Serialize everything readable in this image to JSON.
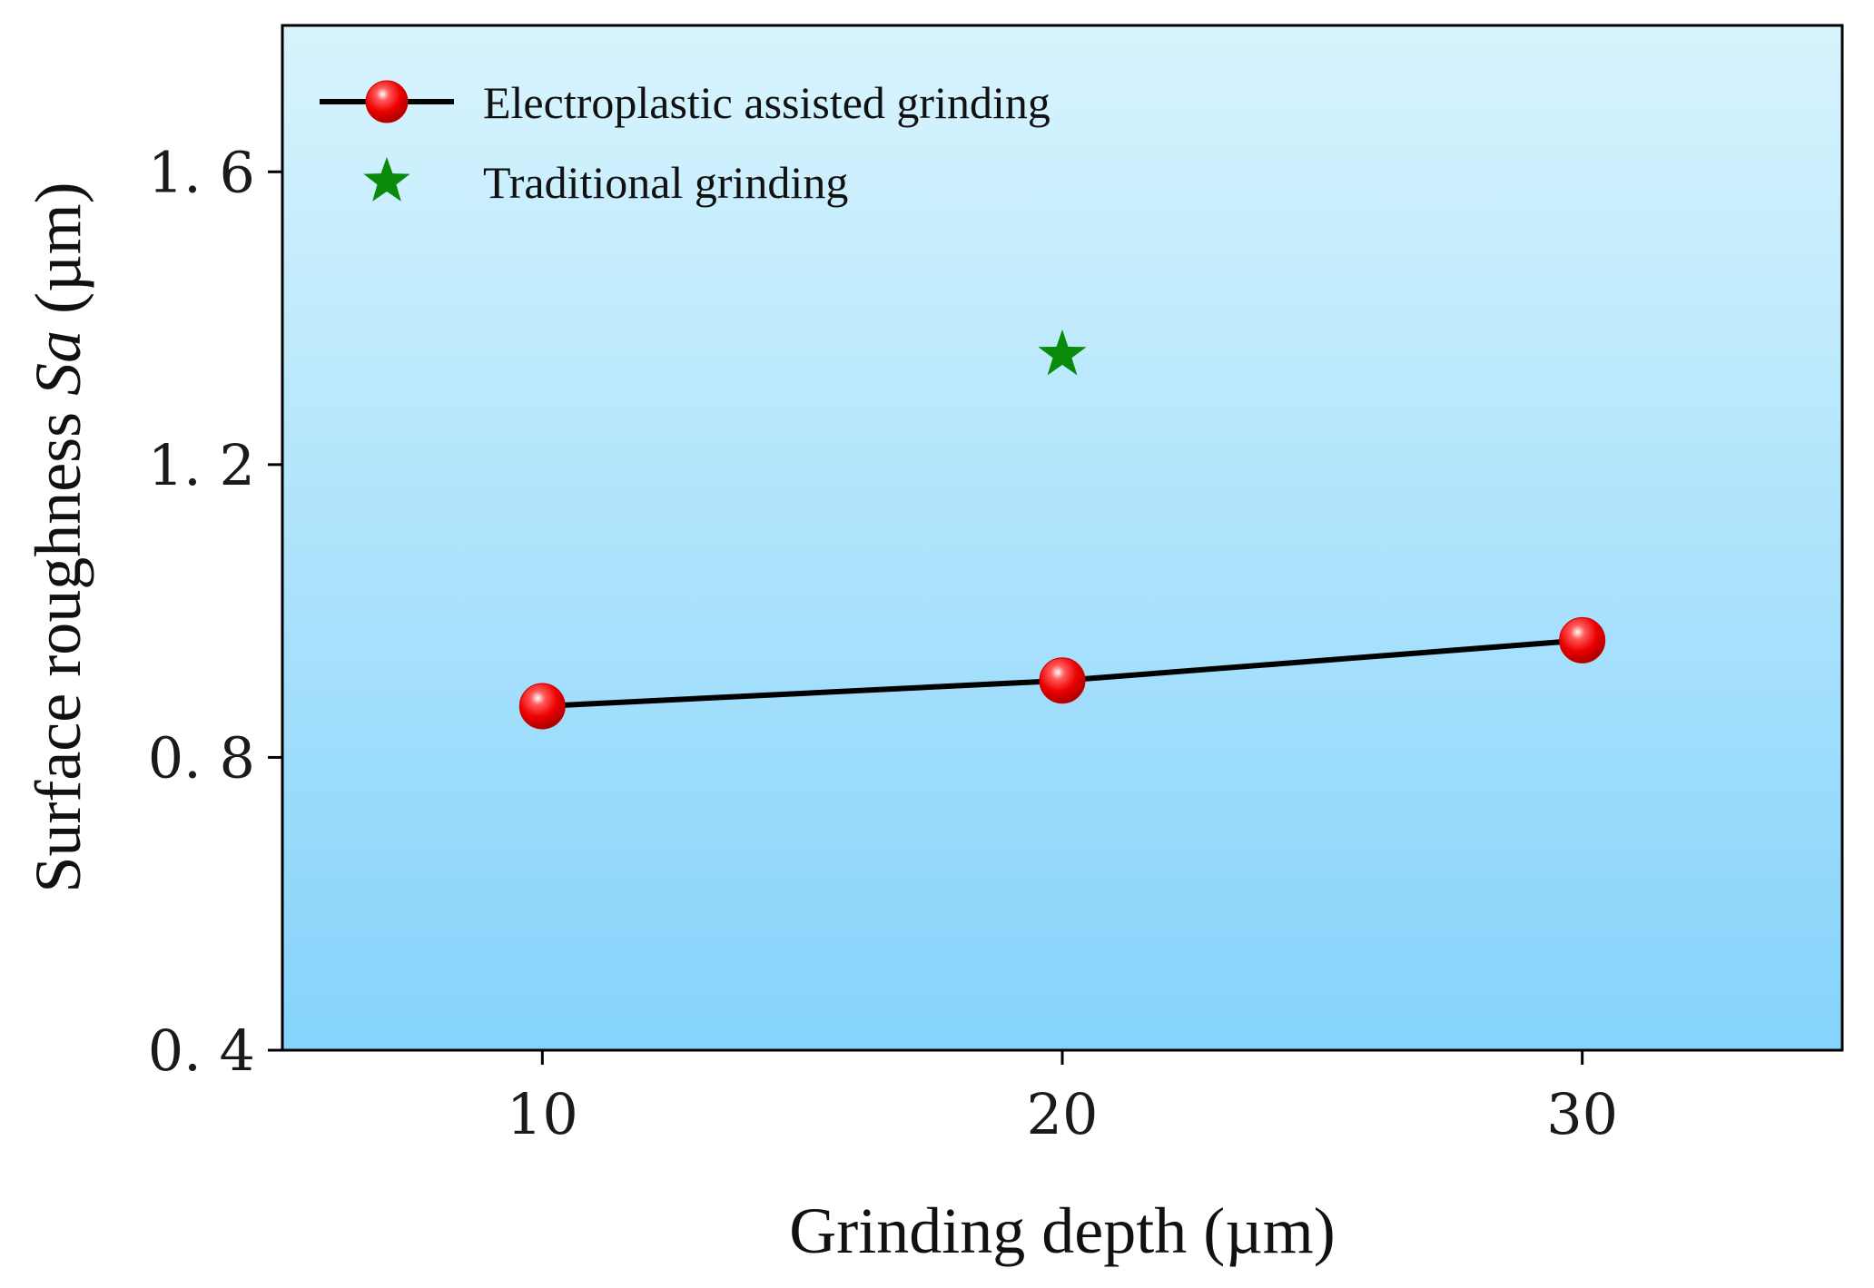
{
  "chart_data": {
    "type": "line",
    "xlabel": "Grinding depth (µm)",
    "ylabel_prefix": "Surface roughness ",
    "ylabel_italic": "Sa",
    "ylabel_suffix": " (µm)",
    "xlim": [
      5,
      35
    ],
    "ylim": [
      0.4,
      1.8
    ],
    "x_ticks": [
      10,
      20,
      30
    ],
    "x_tick_labels": [
      "10",
      "20",
      "30"
    ],
    "y_ticks": [
      0.4,
      0.8,
      1.2,
      1.6
    ],
    "y_tick_labels": [
      "0. 4",
      "0. 8",
      "1. 2",
      "1. 6"
    ],
    "grid": false,
    "legend_position": "top-left",
    "series": [
      {
        "name": "Electroplastic assisted grinding",
        "marker": "circle",
        "line": true,
        "x": [
          10,
          20,
          30
        ],
        "y": [
          0.87,
          0.905,
          0.96
        ]
      },
      {
        "name": "Traditional grinding",
        "marker": "star",
        "line": false,
        "x": [
          20
        ],
        "y": [
          1.35
        ]
      }
    ]
  },
  "colors": {
    "plot_bg_top": "#d8f4fd",
    "plot_bg_bottom": "#85d3fb",
    "line": "#000000",
    "circle_marker": "#ff0000",
    "star_marker": "#0a8a0a",
    "axis": "#000000"
  }
}
